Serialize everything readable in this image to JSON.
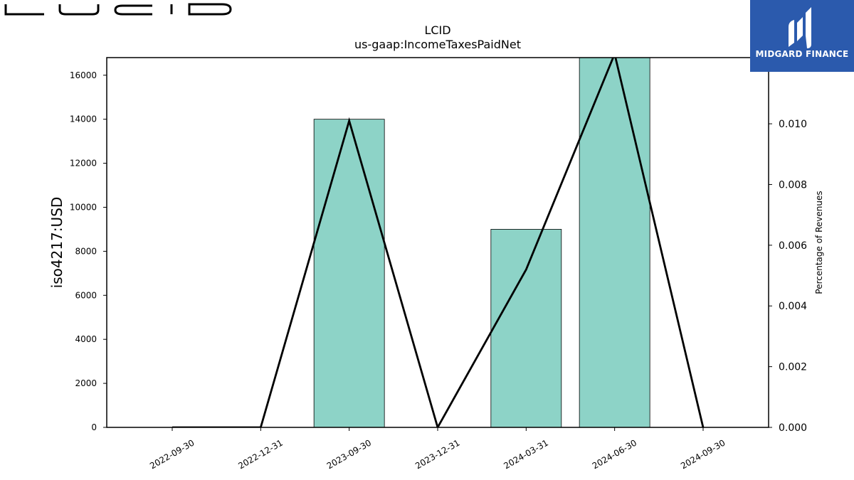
{
  "brand": {
    "left_logo_text": "LUCID",
    "right_logo_text": "MIDGARD FINANCE",
    "right_logo_color": "#2b5aad"
  },
  "chart_data": {
    "type": "bar",
    "title": "LCID",
    "subtitle": "us-gaap:IncomeTaxesPaidNet",
    "categories": [
      "2022-09-30",
      "2022-12-31",
      "2023-09-30",
      "2023-12-31",
      "2024-03-31",
      "2024-06-30",
      "2024-09-30"
    ],
    "series": [
      {
        "values": [
          0,
          0,
          14000,
          0,
          9000,
          17000,
          0
        ],
        "color": "#8dd3c7",
        "axis": "left"
      },
      {
        "type": "line",
        "values": [
          0,
          0,
          0.0101,
          0,
          0.0052,
          0.0123,
          0
        ],
        "color": "#000000",
        "axis": "right"
      }
    ],
    "ylabel": "iso4217:USD",
    "ylim": [
      0,
      16800
    ],
    "yticks": [
      0,
      2000,
      4000,
      6000,
      8000,
      10000,
      12000,
      14000,
      16000
    ],
    "y2label": "Percentage of Revenues",
    "y2lim": [
      0,
      0.01218
    ],
    "y2ticks": [
      "0.000",
      "0.002",
      "0.004",
      "0.006",
      "0.008",
      "0.010"
    ],
    "grid": false,
    "legend": "none"
  }
}
